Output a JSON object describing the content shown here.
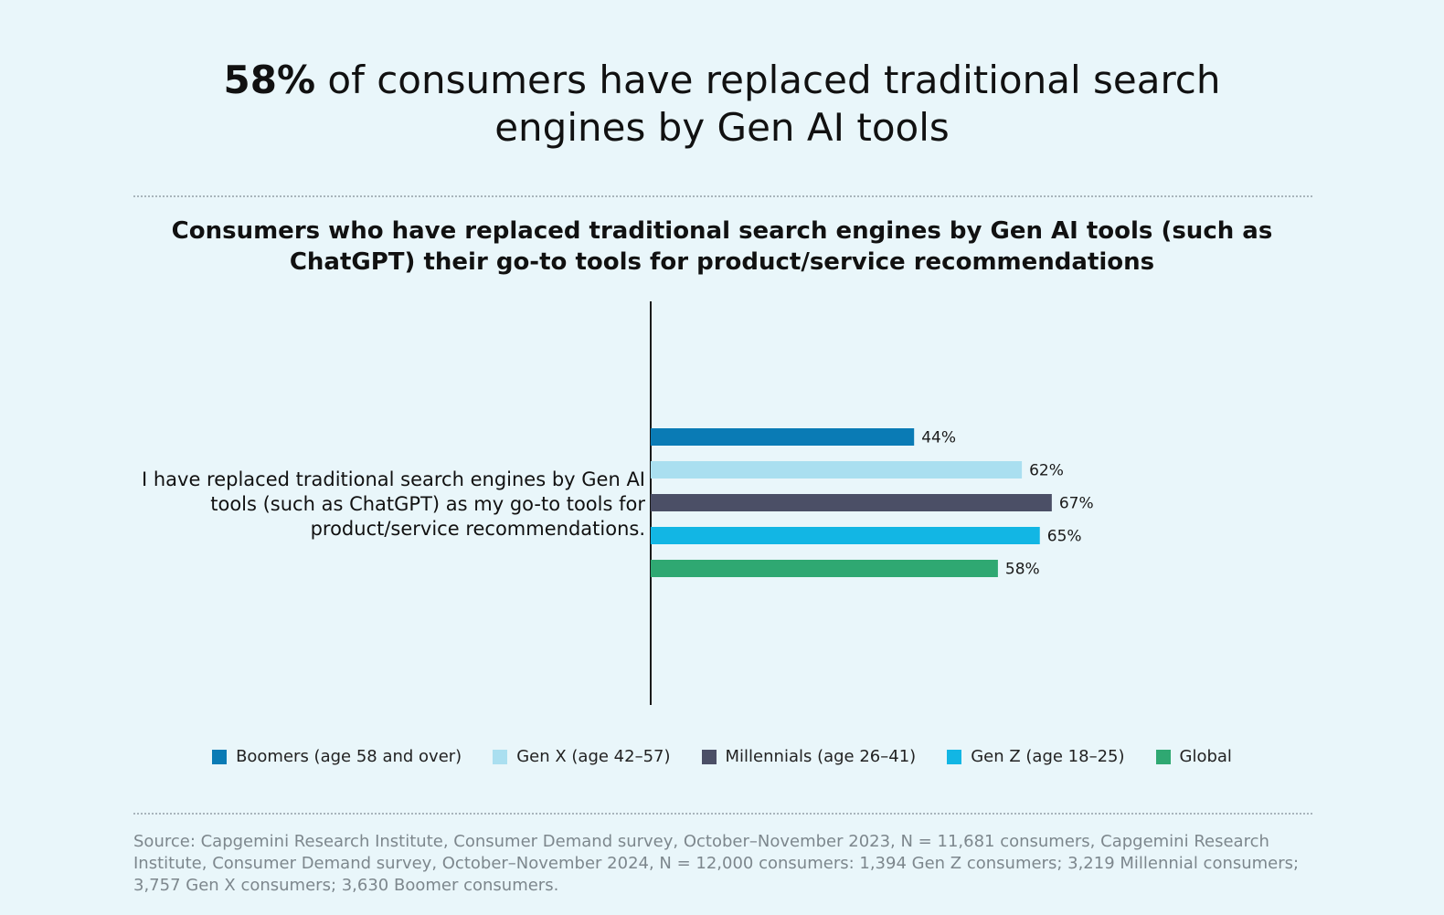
{
  "headline": {
    "strong": "58%",
    "rest": " of consumers have replaced traditional search engines by Gen AI tools"
  },
  "chart_data": {
    "type": "bar",
    "orientation": "horizontal",
    "title": "Consumers who have replaced traditional search engines by Gen AI tools (such as ChatGPT) their go-to tools for product/service recommendations",
    "categories": [
      "I have replaced traditional search engines by Gen AI tools (such as ChatGPT) as my go-to tools for product/service recommendations."
    ],
    "series": [
      {
        "name": "Boomers (age 58 and over)",
        "values": [
          44
        ],
        "color": "#0a7bb5",
        "label": "44%"
      },
      {
        "name": "Gen X (age 42–57)",
        "values": [
          62
        ],
        "color": "#aadff0",
        "label": "62%"
      },
      {
        "name": "Millennials (age 26–41)",
        "values": [
          67
        ],
        "color": "#4b4f66",
        "label": "67%"
      },
      {
        "name": "Gen Z (age 18–25)",
        "values": [
          65
        ],
        "color": "#12b6e4",
        "label": "65%"
      },
      {
        "name": "Global",
        "values": [
          58
        ],
        "color": "#2fa872",
        "label": "58%"
      }
    ],
    "xlim": [
      0,
      100
    ],
    "unit": "%",
    "grid": false,
    "legend_position": "bottom"
  },
  "source": "Source: Capgemini Research Institute, Consumer Demand survey, October–November 2023, N = 11,681 consumers, Capgemini Research Institute, Consumer Demand survey, October–November 2024, N = 12,000 consumers: 1,394 Gen Z consumers; 3,219 Millennial consumers; 3,757 Gen X consumers; 3,630 Boomer consumers."
}
